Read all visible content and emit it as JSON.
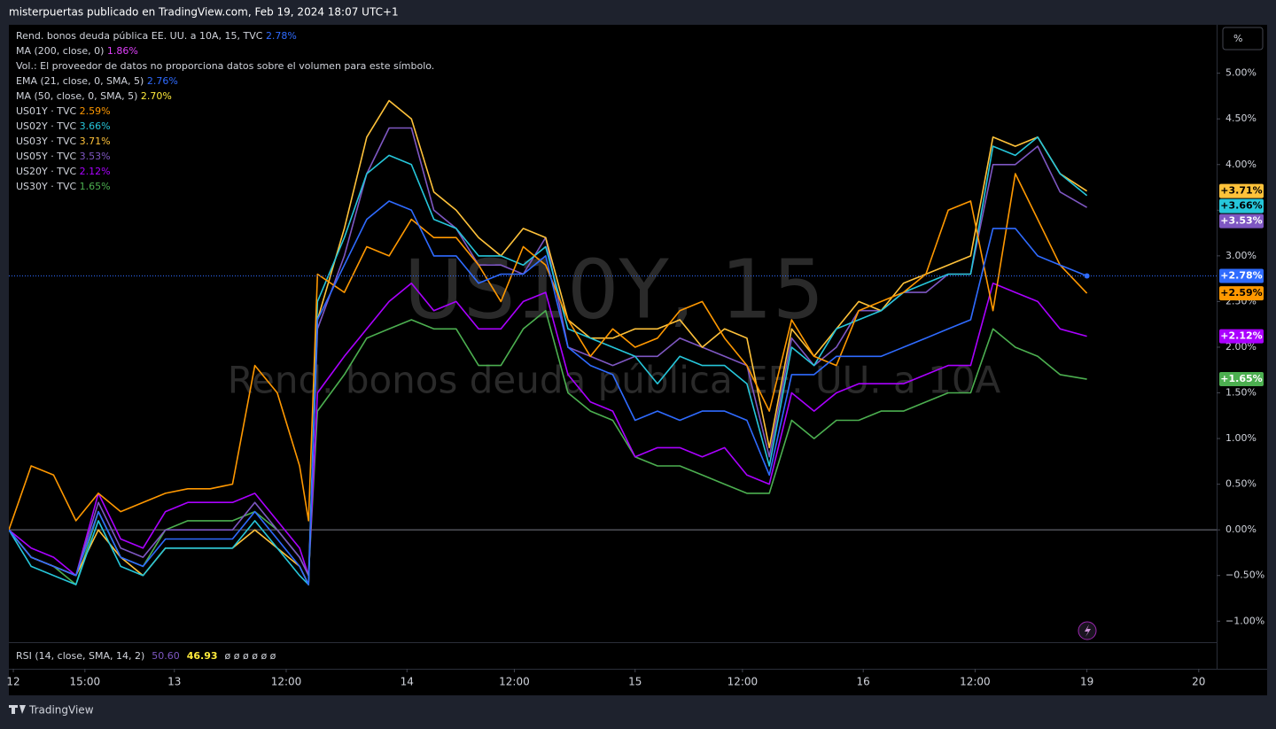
{
  "header": "misterpuertas publicado en TradingView.com, Feb 19, 2024 18:07 UTC+1",
  "footer": "TradingView",
  "scale_button": "%",
  "chart_data": {
    "type": "line",
    "watermark": "US10Y, 15",
    "watermark_subtitle": "Rend. bonos deuda pública EE. UU. a 10A",
    "volume_note": "Vol.: El proveedor de datos no proporciona datos sobre el volumen para este símbolo.",
    "indicators": [
      {
        "label": "MA (200, close, 0)",
        "value": "1.86%",
        "color": "#e040fb"
      },
      {
        "label": "EMA (21, close, 0, SMA, 5)",
        "value": "2.76%",
        "color": "#2f6bff"
      },
      {
        "label": "MA (50, close, 0, SMA, 5)",
        "value": "2.70%",
        "color": "#ffeb3b"
      }
    ],
    "rsi": {
      "label": "RSI (14, close, SMA, 14, 2)",
      "value": "50.60",
      "value_color": "#7e57c2",
      "value2": "46.93",
      "value2_color": "#ffeb3b",
      "rest": "ø ø ø ø ø ø"
    },
    "xlim": [
      0,
      270
    ],
    "xticks": [
      {
        "value": 1,
        "label": "12"
      },
      {
        "value": 17,
        "label": "15:00"
      },
      {
        "value": 37,
        "label": "13"
      },
      {
        "value": 62,
        "label": "12:00"
      },
      {
        "value": 89,
        "label": "14"
      },
      {
        "value": 113,
        "label": "12:00"
      },
      {
        "value": 140,
        "label": "15"
      },
      {
        "value": 164,
        "label": "12:00"
      },
      {
        "value": 191,
        "label": "16"
      },
      {
        "value": 216,
        "label": "12:00"
      },
      {
        "value": 241,
        "label": "19"
      },
      {
        "value": 266,
        "label": "20"
      }
    ],
    "ylim": [
      -1.23,
      5.53
    ],
    "yticks": [
      {
        "value": -1,
        "label": "−1.00%"
      },
      {
        "value": -0.5,
        "label": "−0.50%"
      },
      {
        "value": 0,
        "label": "0.00%"
      },
      {
        "value": 0.5,
        "label": "0.50%"
      },
      {
        "value": 1,
        "label": "1.00%"
      },
      {
        "value": 1.5,
        "label": "1.50%"
      },
      {
        "value": 2,
        "label": "2.00%"
      },
      {
        "value": 2.5,
        "label": "2.50%"
      },
      {
        "value": 3,
        "label": "3.00%"
      },
      {
        "value": 3.5,
        "label": "3.50%"
      },
      {
        "value": 4,
        "label": "4.00%"
      },
      {
        "value": 4.5,
        "label": "4.50%"
      },
      {
        "value": 5,
        "label": "5.00%"
      }
    ],
    "grid": false,
    "x": [
      0,
      5,
      10,
      15,
      20,
      25,
      30,
      35,
      40,
      45,
      50,
      55,
      60,
      65,
      67,
      69,
      75,
      80,
      85,
      90,
      95,
      100,
      105,
      110,
      115,
      120,
      125,
      130,
      135,
      140,
      145,
      150,
      155,
      160,
      165,
      170,
      175,
      180,
      185,
      190,
      195,
      200,
      205,
      210,
      215,
      220,
      225,
      230,
      235,
      241
    ],
    "series": [
      {
        "name": "Rend. bonos deuda pública EE. UU. a 10A, 15, TVC",
        "legend_value": "2.78%",
        "tag": "+2.78%",
        "color": "#2f6bff",
        "values": [
          0.0,
          -0.3,
          -0.4,
          -0.5,
          0.2,
          -0.3,
          -0.4,
          -0.1,
          -0.1,
          -0.1,
          -0.1,
          0.2,
          -0.1,
          -0.4,
          -0.6,
          2.3,
          2.9,
          3.4,
          3.6,
          3.5,
          3.0,
          3.0,
          2.7,
          2.8,
          2.8,
          3.0,
          2.0,
          1.8,
          1.7,
          1.2,
          1.3,
          1.2,
          1.3,
          1.3,
          1.2,
          0.6,
          1.7,
          1.7,
          1.9,
          1.9,
          1.9,
          2.0,
          2.1,
          2.2,
          2.3,
          3.3,
          3.3,
          3.0,
          2.9,
          2.78
        ]
      },
      {
        "name": "US01Y · TVC",
        "legend_value": "2.59%",
        "tag": "+2.59%",
        "color": "#ff9800",
        "values": [
          0.0,
          0.7,
          0.6,
          0.1,
          0.4,
          0.2,
          0.3,
          0.4,
          0.45,
          0.45,
          0.5,
          1.8,
          1.5,
          0.7,
          0.1,
          2.8,
          2.6,
          3.1,
          3.0,
          3.4,
          3.2,
          3.2,
          2.9,
          2.5,
          3.1,
          2.9,
          2.3,
          1.9,
          2.2,
          2.0,
          2.1,
          2.4,
          2.5,
          2.1,
          1.8,
          1.3,
          2.3,
          1.9,
          1.8,
          2.4,
          2.5,
          2.6,
          2.8,
          3.5,
          3.6,
          2.4,
          3.9,
          3.4,
          2.9,
          2.59
        ]
      },
      {
        "name": "US02Y · TVC",
        "legend_value": "3.66%",
        "tag": "+3.66%",
        "color": "#26c6da",
        "values": [
          0.0,
          -0.4,
          -0.5,
          -0.6,
          0.1,
          -0.4,
          -0.5,
          -0.2,
          -0.2,
          -0.2,
          -0.2,
          0.1,
          -0.2,
          -0.5,
          -0.6,
          2.5,
          3.2,
          3.9,
          4.1,
          4.0,
          3.4,
          3.3,
          3.0,
          3.0,
          2.9,
          3.1,
          2.2,
          2.1,
          2.0,
          1.9,
          1.6,
          1.9,
          1.8,
          1.8,
          1.6,
          0.7,
          2.0,
          1.8,
          2.2,
          2.3,
          2.4,
          2.6,
          2.7,
          2.8,
          2.8,
          4.2,
          4.1,
          4.3,
          3.9,
          3.66
        ]
      },
      {
        "name": "US03Y · TVC",
        "legend_value": "3.71%",
        "tag": "+3.71%",
        "color": "#ffc23a",
        "values": [
          0.0,
          -0.3,
          -0.4,
          -0.5,
          0.0,
          -0.3,
          -0.5,
          -0.2,
          -0.2,
          -0.2,
          -0.2,
          0.0,
          -0.2,
          -0.4,
          -0.6,
          2.3,
          3.3,
          4.3,
          4.7,
          4.5,
          3.7,
          3.5,
          3.2,
          3.0,
          3.3,
          3.2,
          2.3,
          2.1,
          2.1,
          2.2,
          2.2,
          2.3,
          2.0,
          2.2,
          2.1,
          0.9,
          2.2,
          1.9,
          2.2,
          2.5,
          2.4,
          2.7,
          2.8,
          2.9,
          3.0,
          4.3,
          4.2,
          4.3,
          3.9,
          3.71
        ]
      },
      {
        "name": "US05Y · TVC",
        "legend_value": "3.53%",
        "tag": "+3.53%",
        "color": "#7e57c2",
        "values": [
          0.0,
          -0.3,
          -0.4,
          -0.5,
          0.3,
          -0.2,
          -0.3,
          0.0,
          0.0,
          0.0,
          0.0,
          0.3,
          0.0,
          -0.3,
          -0.5,
          2.2,
          3.0,
          3.9,
          4.4,
          4.4,
          3.5,
          3.3,
          2.9,
          2.9,
          2.8,
          3.2,
          2.0,
          1.9,
          1.8,
          1.9,
          1.9,
          2.1,
          2.0,
          1.9,
          1.8,
          0.8,
          2.1,
          1.8,
          2.0,
          2.4,
          2.4,
          2.6,
          2.6,
          2.8,
          2.8,
          4.0,
          4.0,
          4.2,
          3.7,
          3.53
        ]
      },
      {
        "name": "US20Y · TVC",
        "legend_value": "2.12%",
        "tag": "+2.12%",
        "color": "#aa00ff",
        "values": [
          0.0,
          -0.2,
          -0.3,
          -0.5,
          0.4,
          -0.1,
          -0.2,
          0.2,
          0.3,
          0.3,
          0.3,
          0.4,
          0.1,
          -0.2,
          -0.5,
          1.5,
          1.9,
          2.2,
          2.5,
          2.7,
          2.4,
          2.5,
          2.2,
          2.2,
          2.5,
          2.6,
          1.7,
          1.4,
          1.3,
          0.8,
          0.9,
          0.9,
          0.8,
          0.9,
          0.6,
          0.5,
          1.5,
          1.3,
          1.5,
          1.6,
          1.6,
          1.6,
          1.7,
          1.8,
          1.8,
          2.7,
          2.6,
          2.5,
          2.2,
          2.12
        ]
      },
      {
        "name": "US30Y · TVC",
        "legend_value": "1.65%",
        "tag": "+1.65%",
        "color": "#4caf50",
        "values": [
          0.0,
          -0.3,
          -0.4,
          -0.6,
          0.2,
          -0.3,
          -0.4,
          0.0,
          0.1,
          0.1,
          0.1,
          0.2,
          0.0,
          -0.3,
          -0.5,
          1.3,
          1.7,
          2.1,
          2.2,
          2.3,
          2.2,
          2.2,
          1.8,
          1.8,
          2.2,
          2.4,
          1.5,
          1.3,
          1.2,
          0.8,
          0.7,
          0.7,
          0.6,
          0.5,
          0.4,
          0.4,
          1.2,
          1.0,
          1.2,
          1.2,
          1.3,
          1.3,
          1.4,
          1.5,
          1.5,
          2.2,
          2.0,
          1.9,
          1.7,
          1.65
        ]
      }
    ]
  }
}
